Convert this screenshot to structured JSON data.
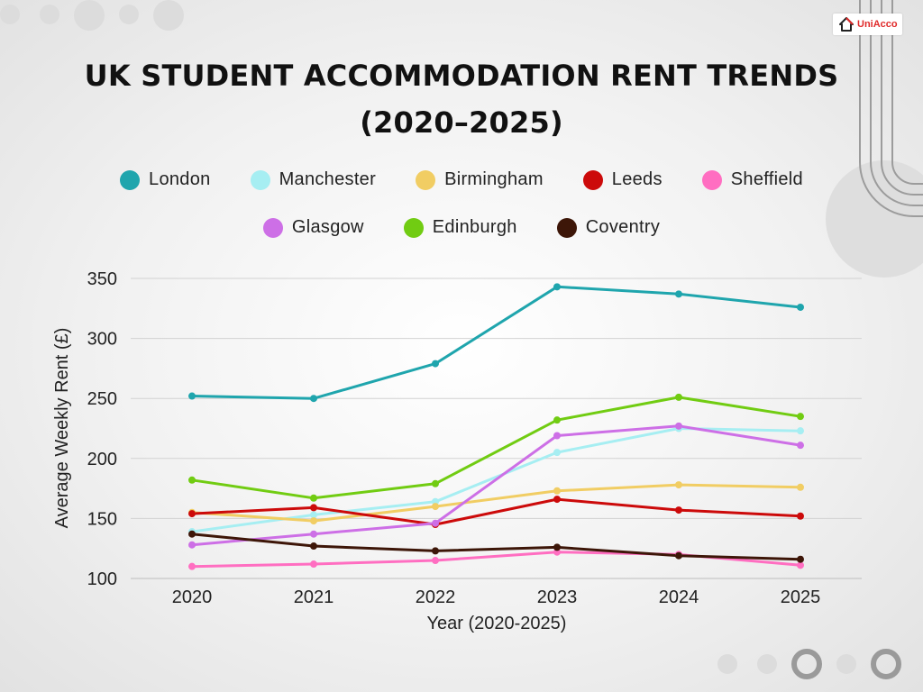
{
  "title_line1": "UK STUDENT ACCOMMODATION RENT TRENDS",
  "title_line2": "(2020–2025)",
  "logo": {
    "text": "UniAcco",
    "icon": "house-icon",
    "color": "#e02a2a"
  },
  "chart_data": {
    "type": "line",
    "title": "UK STUDENT ACCOMMODATION RENT TRENDS (2020–2025)",
    "xlabel": "Year (2020-2025)",
    "ylabel": "Average Weekly Rent (£)",
    "categories": [
      "2020",
      "2021",
      "2022",
      "2023",
      "2024",
      "2025"
    ],
    "ylim": [
      100,
      350
    ],
    "yticks": [
      100,
      150,
      200,
      250,
      300,
      350
    ],
    "grid": true,
    "legend_position": "top",
    "series": [
      {
        "name": "London",
        "color": "#1fa5ad",
        "values": [
          252,
          250,
          279,
          343,
          337,
          326
        ]
      },
      {
        "name": "Manchester",
        "color": "#a6eef2",
        "values": [
          139,
          153,
          164,
          205,
          225,
          223
        ]
      },
      {
        "name": "Birmingham",
        "color": "#f1cd63",
        "values": [
          155,
          148,
          160,
          173,
          178,
          176
        ]
      },
      {
        "name": "Leeds",
        "color": "#cc0a0a",
        "values": [
          154,
          159,
          145,
          166,
          157,
          152
        ]
      },
      {
        "name": "Sheffield",
        "color": "#ff6ec1",
        "values": [
          110,
          112,
          115,
          122,
          120,
          111
        ]
      },
      {
        "name": "Glasgow",
        "color": "#cd6fe6",
        "values": [
          128,
          137,
          146,
          219,
          227,
          211
        ]
      },
      {
        "name": "Edinburgh",
        "color": "#71cc12",
        "values": [
          182,
          167,
          179,
          232,
          251,
          235
        ]
      },
      {
        "name": "Coventry",
        "color": "#3d1608",
        "values": [
          137,
          127,
          123,
          126,
          119,
          116
        ]
      }
    ]
  }
}
